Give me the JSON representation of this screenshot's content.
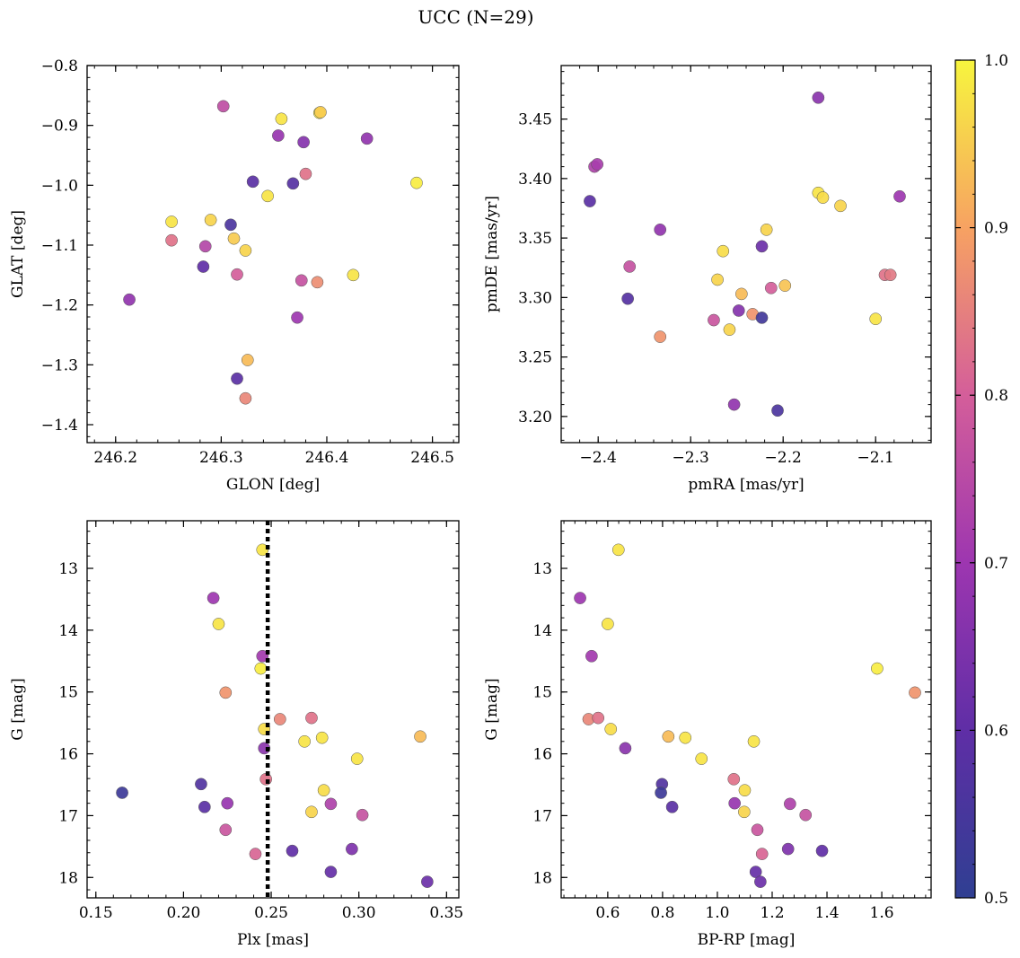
{
  "figure": {
    "title": "UCC (N=29)"
  },
  "colorbar": {
    "colormap": "plasma",
    "range": [
      0.5,
      1.0
    ],
    "ticks": [
      {
        "value": 0.5,
        "label": "0.5"
      },
      {
        "value": 0.6,
        "label": "0.6"
      },
      {
        "value": 0.7,
        "label": "0.7"
      },
      {
        "value": 0.8,
        "label": "0.8"
      },
      {
        "value": 0.9,
        "label": "0.9"
      },
      {
        "value": 1.0,
        "label": "1.0"
      }
    ]
  },
  "chart_data": [
    {
      "type": "scatter",
      "xlabel": "GLON [deg]",
      "ylabel": "GLAT [deg]",
      "xlim": [
        246.173,
        246.525
      ],
      "ylim": [
        -1.43,
        -0.8
      ],
      "xticks": [
        {
          "value": 246.2,
          "label": "246.2"
        },
        {
          "value": 246.3,
          "label": "246.3"
        },
        {
          "value": 246.4,
          "label": "246.4"
        },
        {
          "value": 246.5,
          "label": "246.5"
        }
      ],
      "yticks": [
        {
          "value": -0.8,
          "label": "−0.8"
        },
        {
          "value": -0.9,
          "label": "−0.9"
        },
        {
          "value": -1.0,
          "label": "−1.0"
        },
        {
          "value": -1.1,
          "label": "−1.1"
        },
        {
          "value": -1.2,
          "label": "−1.2"
        },
        {
          "value": -1.3,
          "label": "−1.3"
        },
        {
          "value": -1.4,
          "label": "−1.4"
        }
      ],
      "points": [
        {
          "x": 246.302,
          "y": -0.868,
          "c": 0.76
        },
        {
          "x": 246.357,
          "y": -0.889,
          "c": 0.98
        },
        {
          "x": 246.393,
          "y": -0.879,
          "c": 0.99
        },
        {
          "x": 246.354,
          "y": -0.917,
          "c": 0.69
        },
        {
          "x": 246.378,
          "y": -0.928,
          "c": 0.66
        },
        {
          "x": 246.438,
          "y": -0.922,
          "c": 0.68
        },
        {
          "x": 246.38,
          "y": -0.981,
          "c": 0.83
        },
        {
          "x": 246.33,
          "y": -0.994,
          "c": 0.59
        },
        {
          "x": 246.368,
          "y": -0.997,
          "c": 0.58
        },
        {
          "x": 246.344,
          "y": -1.018,
          "c": 0.98
        },
        {
          "x": 246.485,
          "y": -0.996,
          "c": 0.99
        },
        {
          "x": 246.253,
          "y": -1.061,
          "c": 0.98
        },
        {
          "x": 246.29,
          "y": -1.058,
          "c": 0.96
        },
        {
          "x": 246.309,
          "y": -1.066,
          "c": 0.56
        },
        {
          "x": 246.253,
          "y": -1.092,
          "c": 0.83
        },
        {
          "x": 246.312,
          "y": -1.089,
          "c": 0.95
        },
        {
          "x": 246.285,
          "y": -1.102,
          "c": 0.74
        },
        {
          "x": 246.323,
          "y": -1.109,
          "c": 0.96
        },
        {
          "x": 246.283,
          "y": -1.136,
          "c": 0.6
        },
        {
          "x": 246.315,
          "y": -1.149,
          "c": 0.8
        },
        {
          "x": 246.376,
          "y": -1.159,
          "c": 0.77
        },
        {
          "x": 246.391,
          "y": -1.162,
          "c": 0.87
        },
        {
          "x": 246.425,
          "y": -1.15,
          "c": 0.98
        },
        {
          "x": 246.213,
          "y": -1.191,
          "c": 0.68
        },
        {
          "x": 246.372,
          "y": -1.221,
          "c": 0.7
        },
        {
          "x": 246.325,
          "y": -1.292,
          "c": 0.93
        },
        {
          "x": 246.315,
          "y": -1.323,
          "c": 0.59
        },
        {
          "x": 246.323,
          "y": -1.356,
          "c": 0.86
        },
        {
          "x": 246.394,
          "y": -0.878,
          "c": 0.95
        }
      ]
    },
    {
      "type": "scatter",
      "xlabel": "pmRA [mas/yr]",
      "ylabel": "pmDE [mas/yr]",
      "xlim": [
        -2.44,
        -2.04
      ],
      "ylim": [
        3.178,
        3.495
      ],
      "xticks": [
        {
          "value": -2.4,
          "label": "−2.4"
        },
        {
          "value": -2.3,
          "label": "−2.3"
        },
        {
          "value": -2.2,
          "label": "−2.2"
        },
        {
          "value": -2.1,
          "label": "−2.1"
        }
      ],
      "yticks": [
        {
          "value": 3.2,
          "label": "3.20"
        },
        {
          "value": 3.25,
          "label": "3.25"
        },
        {
          "value": 3.3,
          "label": "3.30"
        },
        {
          "value": 3.35,
          "label": "3.35"
        },
        {
          "value": 3.4,
          "label": "3.40"
        },
        {
          "value": 3.45,
          "label": "3.45"
        }
      ],
      "points": [
        {
          "x": -2.162,
          "y": 3.468,
          "c": 0.67
        },
        {
          "x": -2.404,
          "y": 3.41,
          "c": 0.73
        },
        {
          "x": -2.401,
          "y": 3.412,
          "c": 0.72
        },
        {
          "x": -2.409,
          "y": 3.381,
          "c": 0.59
        },
        {
          "x": -2.162,
          "y": 3.388,
          "c": 0.98
        },
        {
          "x": -2.157,
          "y": 3.384,
          "c": 0.97
        },
        {
          "x": -2.138,
          "y": 3.377,
          "c": 0.96
        },
        {
          "x": -2.074,
          "y": 3.385,
          "c": 0.7
        },
        {
          "x": -2.333,
          "y": 3.357,
          "c": 0.68
        },
        {
          "x": -2.218,
          "y": 3.357,
          "c": 0.96
        },
        {
          "x": -2.223,
          "y": 3.343,
          "c": 0.62
        },
        {
          "x": -2.265,
          "y": 3.339,
          "c": 0.97
        },
        {
          "x": -2.366,
          "y": 3.326,
          "c": 0.77
        },
        {
          "x": -2.271,
          "y": 3.315,
          "c": 0.96
        },
        {
          "x": -2.09,
          "y": 3.319,
          "c": 0.83
        },
        {
          "x": -2.084,
          "y": 3.319,
          "c": 0.84
        },
        {
          "x": -2.213,
          "y": 3.308,
          "c": 0.8
        },
        {
          "x": -2.198,
          "y": 3.31,
          "c": 0.94
        },
        {
          "x": -2.368,
          "y": 3.299,
          "c": 0.58
        },
        {
          "x": -2.245,
          "y": 3.303,
          "c": 0.93
        },
        {
          "x": -2.248,
          "y": 3.289,
          "c": 0.66
        },
        {
          "x": -2.233,
          "y": 3.286,
          "c": 0.88
        },
        {
          "x": -2.223,
          "y": 3.283,
          "c": 0.54
        },
        {
          "x": -2.275,
          "y": 3.281,
          "c": 0.78
        },
        {
          "x": -2.258,
          "y": 3.273,
          "c": 0.96
        },
        {
          "x": -2.1,
          "y": 3.282,
          "c": 0.98
        },
        {
          "x": -2.333,
          "y": 3.267,
          "c": 0.88
        },
        {
          "x": -2.253,
          "y": 3.21,
          "c": 0.68
        },
        {
          "x": -2.206,
          "y": 3.205,
          "c": 0.56
        }
      ]
    },
    {
      "type": "scatter",
      "xlabel": "Plx [mas]",
      "ylabel": "G [mag]",
      "xlim": [
        0.145,
        0.357
      ],
      "ylim": [
        18.33,
        12.23
      ],
      "invert_y": true,
      "vline": {
        "x": 0.248,
        "style": "dotted"
      },
      "xticks": [
        {
          "value": 0.15,
          "label": "0.15"
        },
        {
          "value": 0.2,
          "label": "0.20"
        },
        {
          "value": 0.25,
          "label": "0.25"
        },
        {
          "value": 0.3,
          "label": "0.30"
        },
        {
          "value": 0.35,
          "label": "0.35"
        }
      ],
      "yticks": [
        {
          "value": 13,
          "label": "13"
        },
        {
          "value": 14,
          "label": "14"
        },
        {
          "value": 15,
          "label": "15"
        },
        {
          "value": 16,
          "label": "16"
        },
        {
          "value": 17,
          "label": "17"
        },
        {
          "value": 18,
          "label": "18"
        }
      ],
      "points": [
        {
          "x": 0.245,
          "y": 12.7,
          "c": 0.98
        },
        {
          "x": 0.217,
          "y": 13.48,
          "c": 0.7
        },
        {
          "x": 0.22,
          "y": 13.9,
          "c": 0.98
        },
        {
          "x": 0.245,
          "y": 14.42,
          "c": 0.71
        },
        {
          "x": 0.244,
          "y": 14.62,
          "c": 0.99
        },
        {
          "x": 0.224,
          "y": 15.01,
          "c": 0.88
        },
        {
          "x": 0.255,
          "y": 15.44,
          "c": 0.86
        },
        {
          "x": 0.273,
          "y": 15.42,
          "c": 0.83
        },
        {
          "x": 0.246,
          "y": 15.6,
          "c": 0.97
        },
        {
          "x": 0.269,
          "y": 15.8,
          "c": 0.98
        },
        {
          "x": 0.279,
          "y": 15.74,
          "c": 0.98
        },
        {
          "x": 0.335,
          "y": 15.72,
          "c": 0.93
        },
        {
          "x": 0.246,
          "y": 15.91,
          "c": 0.67
        },
        {
          "x": 0.299,
          "y": 16.08,
          "c": 0.98
        },
        {
          "x": 0.247,
          "y": 16.41,
          "c": 0.83
        },
        {
          "x": 0.165,
          "y": 16.63,
          "c": 0.53
        },
        {
          "x": 0.21,
          "y": 16.49,
          "c": 0.57
        },
        {
          "x": 0.28,
          "y": 16.59,
          "c": 0.97
        },
        {
          "x": 0.212,
          "y": 16.86,
          "c": 0.59
        },
        {
          "x": 0.225,
          "y": 16.8,
          "c": 0.69
        },
        {
          "x": 0.273,
          "y": 16.94,
          "c": 0.96
        },
        {
          "x": 0.284,
          "y": 16.81,
          "c": 0.73
        },
        {
          "x": 0.302,
          "y": 16.99,
          "c": 0.77
        },
        {
          "x": 0.224,
          "y": 17.23,
          "c": 0.78
        },
        {
          "x": 0.241,
          "y": 17.62,
          "c": 0.81
        },
        {
          "x": 0.262,
          "y": 17.57,
          "c": 0.6
        },
        {
          "x": 0.296,
          "y": 17.54,
          "c": 0.65
        },
        {
          "x": 0.284,
          "y": 17.91,
          "c": 0.61
        },
        {
          "x": 0.339,
          "y": 18.07,
          "c": 0.62
        }
      ]
    },
    {
      "type": "scatter",
      "xlabel": "BP-RP [mag]",
      "ylabel": "G [mag]",
      "xlim": [
        0.43,
        1.78
      ],
      "ylim": [
        18.33,
        12.23
      ],
      "invert_y": true,
      "xticks": [
        {
          "value": 0.6,
          "label": "0.6"
        },
        {
          "value": 0.8,
          "label": "0.8"
        },
        {
          "value": 1.0,
          "label": "1.0"
        },
        {
          "value": 1.2,
          "label": "1.2"
        },
        {
          "value": 1.4,
          "label": "1.4"
        },
        {
          "value": 1.6,
          "label": "1.6"
        }
      ],
      "yticks": [
        {
          "value": 13,
          "label": "13"
        },
        {
          "value": 14,
          "label": "14"
        },
        {
          "value": 15,
          "label": "15"
        },
        {
          "value": 16,
          "label": "16"
        },
        {
          "value": 17,
          "label": "17"
        },
        {
          "value": 18,
          "label": "18"
        }
      ],
      "points": [
        {
          "x": 0.639,
          "y": 12.7,
          "c": 0.98
        },
        {
          "x": 0.499,
          "y": 13.48,
          "c": 0.7
        },
        {
          "x": 0.6,
          "y": 13.9,
          "c": 0.98
        },
        {
          "x": 0.541,
          "y": 14.42,
          "c": 0.71
        },
        {
          "x": 1.583,
          "y": 14.62,
          "c": 0.99
        },
        {
          "x": 1.721,
          "y": 15.01,
          "c": 0.88
        },
        {
          "x": 0.53,
          "y": 15.44,
          "c": 0.86
        },
        {
          "x": 0.565,
          "y": 15.42,
          "c": 0.83
        },
        {
          "x": 0.611,
          "y": 15.6,
          "c": 0.97
        },
        {
          "x": 0.821,
          "y": 15.72,
          "c": 0.93
        },
        {
          "x": 0.883,
          "y": 15.74,
          "c": 0.98
        },
        {
          "x": 1.133,
          "y": 15.8,
          "c": 0.98
        },
        {
          "x": 0.664,
          "y": 15.91,
          "c": 0.67
        },
        {
          "x": 0.942,
          "y": 16.08,
          "c": 0.98
        },
        {
          "x": 1.06,
          "y": 16.41,
          "c": 0.83
        },
        {
          "x": 0.798,
          "y": 16.49,
          "c": 0.57
        },
        {
          "x": 0.794,
          "y": 16.63,
          "c": 0.53
        },
        {
          "x": 1.1,
          "y": 16.59,
          "c": 0.97
        },
        {
          "x": 1.063,
          "y": 16.8,
          "c": 0.69
        },
        {
          "x": 0.835,
          "y": 16.86,
          "c": 0.59
        },
        {
          "x": 1.265,
          "y": 16.81,
          "c": 0.73
        },
        {
          "x": 1.098,
          "y": 16.94,
          "c": 0.96
        },
        {
          "x": 1.322,
          "y": 16.99,
          "c": 0.77
        },
        {
          "x": 1.146,
          "y": 17.23,
          "c": 0.78
        },
        {
          "x": 1.258,
          "y": 17.54,
          "c": 0.65
        },
        {
          "x": 1.382,
          "y": 17.57,
          "c": 0.6
        },
        {
          "x": 1.163,
          "y": 17.62,
          "c": 0.81
        },
        {
          "x": 1.14,
          "y": 17.91,
          "c": 0.61
        },
        {
          "x": 1.157,
          "y": 18.07,
          "c": 0.62
        }
      ]
    }
  ]
}
